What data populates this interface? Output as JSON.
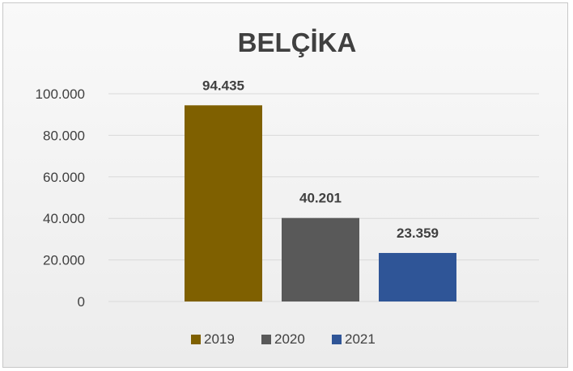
{
  "chart_data": {
    "type": "bar",
    "title": "BELÇİKA",
    "categories": [
      "2019",
      "2020",
      "2021"
    ],
    "values": [
      94435,
      40201,
      23359
    ],
    "value_labels": [
      "94.435",
      "40.201",
      "23.359"
    ],
    "colors": [
      "#7f6000",
      "#595959",
      "#2f5597"
    ],
    "ylim": [
      0,
      100000
    ],
    "yticks": [
      0,
      20000,
      40000,
      60000,
      80000,
      100000
    ],
    "ytick_labels": [
      "0",
      "20.000",
      "40.000",
      "60.000",
      "80.000",
      "100.000"
    ],
    "xlabel": "",
    "ylabel": "",
    "grid": true,
    "legend": {
      "position": "bottom",
      "entries": [
        "2019",
        "2020",
        "2021"
      ]
    }
  }
}
